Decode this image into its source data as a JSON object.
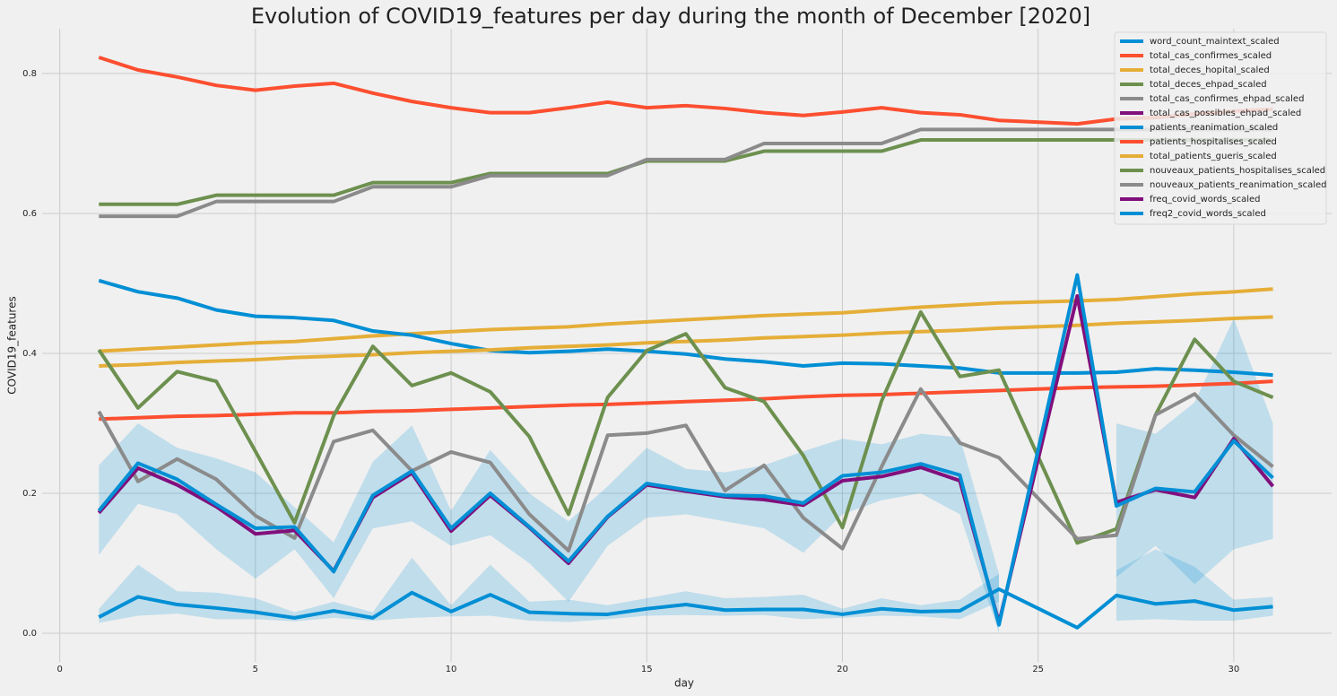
{
  "chart_data": {
    "type": "line",
    "title": "Evolution of COVID19_features per day during the month of December [2020]",
    "x_label": "day",
    "y_label": "COVID19_features",
    "x": [
      1,
      2,
      3,
      4,
      5,
      6,
      7,
      8,
      9,
      10,
      11,
      12,
      13,
      14,
      15,
      16,
      17,
      18,
      19,
      20,
      21,
      22,
      23,
      24,
      26,
      27,
      28,
      29,
      30,
      31
    ],
    "xlim": [
      -0.45,
      32.5
    ],
    "xticks": [
      0,
      5,
      10,
      15,
      20,
      25,
      30
    ],
    "ylim": [
      -0.041,
      0.864
    ],
    "yticks": [
      {
        "value": 0,
        "label": "0.0"
      },
      0.2,
      0.4,
      0.6,
      0.8
    ],
    "grid": true,
    "legend": "upper right",
    "series": [
      {
        "name": "word_count_maintext_scaled",
        "color": "#008fd5",
        "values": [
          0.023,
          0.052,
          0.041,
          0.036,
          0.03,
          0.022,
          0.032,
          0.022,
          0.058,
          0.031,
          0.055,
          0.03,
          0.028,
          0.027,
          0.035,
          0.041,
          0.033,
          0.034,
          0.034,
          0.027,
          0.035,
          0.031,
          0.032,
          0.063,
          0.008,
          0.054,
          0.042,
          0.046,
          0.033,
          0.038
        ],
        "lower": [
          0.015,
          0.025,
          0.028,
          0.02,
          0.02,
          0.017,
          0.022,
          0.018,
          0.022,
          0.024,
          0.025,
          0.018,
          0.016,
          0.02,
          0.025,
          0.026,
          0.025,
          0.026,
          0.02,
          0.022,
          0.025,
          0.024,
          0.02,
          0.045,
          null,
          0.018,
          0.02,
          0.018,
          0.018,
          0.025
        ],
        "upper": [
          0.035,
          0.098,
          0.06,
          0.058,
          0.05,
          0.03,
          0.045,
          0.03,
          0.108,
          0.04,
          0.098,
          0.045,
          0.048,
          0.04,
          0.05,
          0.06,
          0.05,
          0.052,
          0.055,
          0.035,
          0.05,
          0.04,
          0.048,
          0.085,
          null,
          0.09,
          0.12,
          0.095,
          0.048,
          0.052
        ]
      },
      {
        "name": "total_cas_confirmes_scaled",
        "color": "#fc4f30",
        "values": [
          0.306,
          0.308,
          0.31,
          0.311,
          0.313,
          0.315,
          0.315,
          0.317,
          0.318,
          0.32,
          0.322,
          0.324,
          0.326,
          0.327,
          0.329,
          0.331,
          0.333,
          0.335,
          0.338,
          0.34,
          0.341,
          0.343,
          0.345,
          0.347,
          0.351,
          0.352,
          0.353,
          0.355,
          0.357,
          0.36
        ]
      },
      {
        "name": "total_deces_hopital_scaled",
        "color": "#e5ae38",
        "values": [
          0.403,
          0.406,
          0.409,
          0.412,
          0.415,
          0.417,
          0.421,
          0.425,
          0.428,
          0.431,
          0.434,
          0.436,
          0.438,
          0.442,
          0.445,
          0.448,
          0.451,
          0.454,
          0.456,
          0.458,
          0.462,
          0.466,
          0.469,
          0.472,
          0.475,
          0.477,
          0.481,
          0.485,
          0.488,
          0.492
        ]
      },
      {
        "name": "total_deces_ehpad_scaled",
        "color": "#6d904f",
        "values": [
          0.613,
          0.613,
          0.613,
          0.626,
          0.626,
          0.626,
          0.626,
          0.644,
          0.644,
          0.644,
          0.657,
          0.657,
          0.657,
          0.657,
          0.675,
          0.675,
          0.675,
          0.689,
          0.689,
          0.689,
          0.689,
          0.705,
          0.705,
          0.705,
          0.705,
          0.705,
          0.705,
          0.705,
          0.705,
          0.705
        ]
      },
      {
        "name": "total_cas_confirmes_ehpad_scaled",
        "color": "#8b8b8b",
        "values": [
          0.596,
          0.596,
          0.596,
          0.617,
          0.617,
          0.617,
          0.617,
          0.638,
          0.638,
          0.638,
          0.654,
          0.654,
          0.654,
          0.654,
          0.677,
          0.677,
          0.677,
          0.7,
          0.7,
          0.7,
          0.7,
          0.72,
          0.72,
          0.72,
          0.72,
          0.72,
          0.72,
          0.72,
          0.72,
          0.72
        ]
      },
      {
        "name": "total_cas_possibles_ehpad_scaled",
        "color": "#810f7c",
        "values": [
          null,
          null,
          null,
          null,
          null,
          null,
          null,
          null,
          null,
          null,
          null,
          null,
          null,
          null,
          null,
          null,
          null,
          null,
          null,
          null,
          null,
          null,
          null,
          null,
          null,
          null,
          null,
          null,
          null,
          null
        ]
      },
      {
        "name": "patients_reanimation_scaled",
        "color": "#008fd5",
        "values": [
          0.504,
          0.488,
          0.479,
          0.462,
          0.453,
          0.451,
          0.447,
          0.432,
          0.426,
          0.414,
          0.404,
          0.401,
          0.403,
          0.406,
          0.403,
          0.399,
          0.392,
          0.388,
          0.382,
          0.386,
          0.385,
          0.382,
          0.379,
          0.372,
          0.372,
          0.373,
          0.378,
          0.376,
          0.373,
          0.369
        ]
      },
      {
        "name": "patients_hospitalises_scaled",
        "color": "#fc4f30",
        "values": [
          0.823,
          0.805,
          0.795,
          0.783,
          0.776,
          0.782,
          0.786,
          0.772,
          0.76,
          0.751,
          0.744,
          0.744,
          0.751,
          0.759,
          0.751,
          0.754,
          0.75,
          0.744,
          0.74,
          0.745,
          0.751,
          0.744,
          0.741,
          0.733,
          0.728,
          0.735,
          0.737,
          0.742,
          0.746,
          0.749
        ]
      },
      {
        "name": "total_patients_gueris_scaled",
        "color": "#e5ae38",
        "values": [
          0.382,
          0.384,
          0.387,
          0.389,
          0.391,
          0.394,
          0.396,
          0.398,
          0.401,
          0.403,
          0.405,
          0.408,
          0.41,
          0.412,
          0.415,
          0.417,
          0.419,
          0.422,
          0.424,
          0.426,
          0.429,
          0.431,
          0.433,
          0.436,
          0.44,
          0.443,
          0.445,
          0.447,
          0.45,
          0.452
        ]
      },
      {
        "name": "nouveaux_patients_hospitalises_scaled",
        "color": "#6d904f",
        "values": [
          0.405,
          0.322,
          0.374,
          0.36,
          0.26,
          0.158,
          0.311,
          0.41,
          0.354,
          0.372,
          0.345,
          0.281,
          0.17,
          0.337,
          0.404,
          0.428,
          0.351,
          0.331,
          0.254,
          0.151,
          0.332,
          0.459,
          0.367,
          0.376,
          0.129,
          0.149,
          0.312,
          0.42,
          0.36,
          0.337
        ]
      },
      {
        "name": "nouveaux_patients_reanimation_scaled",
        "color": "#8b8b8b",
        "values": [
          0.317,
          0.217,
          0.249,
          0.22,
          0.168,
          0.136,
          0.274,
          0.29,
          0.232,
          0.259,
          0.244,
          0.17,
          0.118,
          0.283,
          0.286,
          0.297,
          0.204,
          0.24,
          0.165,
          0.121,
          0.238,
          0.349,
          0.272,
          0.251,
          0.135,
          0.14,
          0.312,
          0.342,
          0.283,
          0.238
        ]
      },
      {
        "name": "freq_covid_words_scaled",
        "color": "#810f7c",
        "values": [
          0.172,
          0.236,
          0.212,
          0.181,
          0.142,
          0.147,
          0.089,
          0.194,
          0.229,
          0.146,
          0.197,
          0.151,
          0.1,
          0.166,
          0.212,
          0.203,
          0.195,
          0.191,
          0.183,
          0.218,
          0.224,
          0.237,
          0.218,
          0.015,
          0.482,
          0.187,
          0.205,
          0.194,
          0.278,
          0.21
        ]
      },
      {
        "name": "freq2_covid_words_scaled",
        "color": "#008fd5",
        "values": [
          0.175,
          0.243,
          0.22,
          0.184,
          0.15,
          0.152,
          0.088,
          0.197,
          0.232,
          0.15,
          0.2,
          0.152,
          0.103,
          0.167,
          0.214,
          0.205,
          0.197,
          0.196,
          0.186,
          0.225,
          0.23,
          0.242,
          0.226,
          0.012,
          0.512,
          0.182,
          0.207,
          0.202,
          0.275,
          0.222
        ],
        "lower": [
          0.112,
          0.185,
          0.17,
          0.12,
          0.078,
          0.12,
          0.05,
          0.15,
          0.16,
          0.125,
          0.14,
          0.1,
          0.045,
          0.125,
          0.165,
          0.17,
          0.16,
          0.15,
          0.115,
          0.17,
          0.19,
          0.2,
          0.17,
          0.0,
          null,
          0.08,
          0.125,
          0.07,
          0.12,
          0.135
        ],
        "upper": [
          0.24,
          0.3,
          0.265,
          0.25,
          0.23,
          0.18,
          0.13,
          0.245,
          0.297,
          0.175,
          0.262,
          0.2,
          0.16,
          0.21,
          0.265,
          0.235,
          0.23,
          0.24,
          0.26,
          0.278,
          0.27,
          0.285,
          0.28,
          0.085,
          null,
          0.3,
          0.285,
          0.33,
          0.45,
          0.3
        ]
      }
    ]
  }
}
